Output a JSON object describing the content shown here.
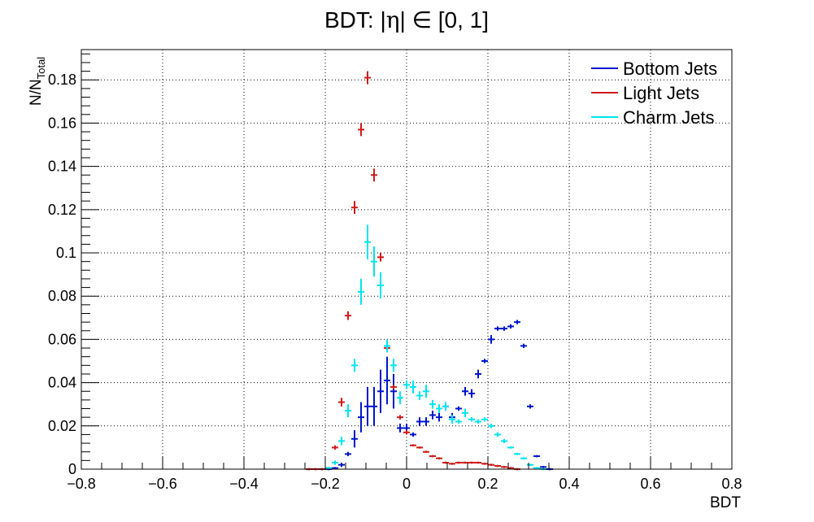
{
  "chart_data": {
    "type": "scatter",
    "title_prefix": "BDT: |",
    "title_eta": "η",
    "title_suffix": "| ∈ [0, 1]",
    "xlabel": "BDT",
    "ylabel_main": "N/N",
    "ylabel_sub": "Total",
    "xlim": [
      -0.8,
      0.8
    ],
    "ylim": [
      0,
      0.194
    ],
    "x_ticks": [
      -0.8,
      -0.6,
      -0.4,
      -0.2,
      0,
      0.2,
      0.4,
      0.6,
      0.8
    ],
    "x_tick_labels": [
      "−0.8",
      "−0.6",
      "−0.4",
      "−0.2",
      "0",
      "0.2",
      "0.4",
      "0.6",
      "0.8"
    ],
    "y_ticks": [
      0,
      0.02,
      0.04,
      0.06,
      0.08,
      0.1,
      0.12,
      0.14,
      0.16,
      0.18
    ],
    "y_tick_labels": [
      "0",
      "0.02",
      "0.04",
      "0.06",
      "0.08",
      "0.1",
      "0.12",
      "0.14",
      "0.16",
      "0.18"
    ],
    "bin_half_width": 0.008,
    "grid": true,
    "legend_position": "top-right",
    "series": [
      {
        "name": "Bottom Jets",
        "color": "#0015cc",
        "points": [
          [
            -0.208,
            0.0,
            0.0005
          ],
          [
            -0.192,
            0.0,
            0.0005
          ],
          [
            -0.176,
            0.0005,
            0.0005
          ],
          [
            -0.16,
            0.002,
            0.001
          ],
          [
            -0.144,
            0.007,
            0.001
          ],
          [
            -0.128,
            0.014,
            0.004
          ],
          [
            -0.112,
            0.024,
            0.007
          ],
          [
            -0.096,
            0.029,
            0.009
          ],
          [
            -0.08,
            0.029,
            0.009
          ],
          [
            -0.064,
            0.036,
            0.01
          ],
          [
            -0.048,
            0.041,
            0.011
          ],
          [
            -0.032,
            0.036,
            0.008
          ],
          [
            -0.016,
            0.019,
            0.002
          ],
          [
            0.0,
            0.019,
            0.002
          ],
          [
            0.016,
            0.016,
            0.001
          ],
          [
            0.032,
            0.022,
            0.002
          ],
          [
            0.048,
            0.022,
            0.002
          ],
          [
            0.064,
            0.025,
            0.002
          ],
          [
            0.08,
            0.024,
            0.002
          ],
          [
            0.096,
            0.029,
            0.002
          ],
          [
            0.112,
            0.024,
            0.002
          ],
          [
            0.128,
            0.028,
            0.001
          ],
          [
            0.144,
            0.036,
            0.002
          ],
          [
            0.16,
            0.035,
            0.002
          ],
          [
            0.176,
            0.044,
            0.002
          ],
          [
            0.192,
            0.05,
            0.001
          ],
          [
            0.208,
            0.06,
            0.002
          ],
          [
            0.224,
            0.065,
            0.001
          ],
          [
            0.24,
            0.065,
            0.001
          ],
          [
            0.256,
            0.066,
            0.001
          ],
          [
            0.272,
            0.068,
            0.001
          ],
          [
            0.288,
            0.057,
            0.001
          ],
          [
            0.304,
            0.029,
            0.001
          ],
          [
            0.32,
            0.006,
            0.0005
          ],
          [
            0.336,
            0.001,
            0.0005
          ],
          [
            0.352,
            0.0,
            0.0005
          ]
        ]
      },
      {
        "name": "Light Jets",
        "color": "#d11a1a",
        "points": [
          [
            -0.24,
            0.0,
            0.0005
          ],
          [
            -0.224,
            0.0,
            0.0005
          ],
          [
            -0.208,
            0.0,
            0.0005
          ],
          [
            -0.192,
            0.0005,
            0.0005
          ],
          [
            -0.176,
            0.01,
            0.001
          ],
          [
            -0.16,
            0.031,
            0.002
          ],
          [
            -0.144,
            0.071,
            0.002
          ],
          [
            -0.128,
            0.121,
            0.003
          ],
          [
            -0.112,
            0.157,
            0.003
          ],
          [
            -0.096,
            0.181,
            0.003
          ],
          [
            -0.08,
            0.136,
            0.003
          ],
          [
            -0.064,
            0.098,
            0.002
          ],
          [
            -0.048,
            0.056,
            0.002
          ],
          [
            -0.032,
            0.038,
            0.001
          ],
          [
            -0.016,
            0.024,
            0.001
          ],
          [
            0.0,
            0.017,
            0.001
          ],
          [
            0.016,
            0.011,
            0.0005
          ],
          [
            0.032,
            0.01,
            0.0005
          ],
          [
            0.048,
            0.008,
            0.0005
          ],
          [
            0.064,
            0.006,
            0.0005
          ],
          [
            0.08,
            0.005,
            0.0005
          ],
          [
            0.096,
            0.003,
            0.0005
          ],
          [
            0.112,
            0.0025,
            0.0005
          ],
          [
            0.128,
            0.003,
            0.0005
          ],
          [
            0.144,
            0.003,
            0.0005
          ],
          [
            0.16,
            0.003,
            0.0005
          ],
          [
            0.176,
            0.003,
            0.0005
          ],
          [
            0.192,
            0.0025,
            0.0005
          ],
          [
            0.208,
            0.002,
            0.0005
          ],
          [
            0.224,
            0.0015,
            0.0005
          ],
          [
            0.24,
            0.001,
            0.0005
          ],
          [
            0.256,
            0.0005,
            0.0005
          ],
          [
            0.272,
            0.0,
            0.0005
          ]
        ]
      },
      {
        "name": "Charm Jets",
        "color": "#00e5ee",
        "points": [
          [
            -0.192,
            0.0005,
            0.0005
          ],
          [
            -0.176,
            0.003,
            0.001
          ],
          [
            -0.16,
            0.013,
            0.002
          ],
          [
            -0.144,
            0.027,
            0.003
          ],
          [
            -0.128,
            0.048,
            0.003
          ],
          [
            -0.112,
            0.082,
            0.006
          ],
          [
            -0.096,
            0.105,
            0.008
          ],
          [
            -0.08,
            0.096,
            0.007
          ],
          [
            -0.064,
            0.085,
            0.006
          ],
          [
            -0.048,
            0.057,
            0.003
          ],
          [
            -0.032,
            0.048,
            0.003
          ],
          [
            -0.016,
            0.033,
            0.003
          ],
          [
            0.0,
            0.039,
            0.002
          ],
          [
            0.016,
            0.038,
            0.003
          ],
          [
            0.032,
            0.034,
            0.002
          ],
          [
            0.048,
            0.036,
            0.003
          ],
          [
            0.064,
            0.03,
            0.002
          ],
          [
            0.08,
            0.028,
            0.002
          ],
          [
            0.096,
            0.029,
            0.002
          ],
          [
            0.112,
            0.023,
            0.002
          ],
          [
            0.128,
            0.022,
            0.001
          ],
          [
            0.144,
            0.026,
            0.002
          ],
          [
            0.16,
            0.023,
            0.001
          ],
          [
            0.176,
            0.022,
            0.001
          ],
          [
            0.192,
            0.023,
            0.001
          ],
          [
            0.208,
            0.02,
            0.001
          ],
          [
            0.224,
            0.016,
            0.001
          ],
          [
            0.24,
            0.013,
            0.001
          ],
          [
            0.256,
            0.01,
            0.0005
          ],
          [
            0.272,
            0.007,
            0.0005
          ],
          [
            0.288,
            0.005,
            0.0005
          ],
          [
            0.304,
            0.002,
            0.0005
          ],
          [
            0.32,
            0.0005,
            0.0005
          ],
          [
            0.336,
            0.0,
            0.0005
          ]
        ]
      }
    ]
  }
}
